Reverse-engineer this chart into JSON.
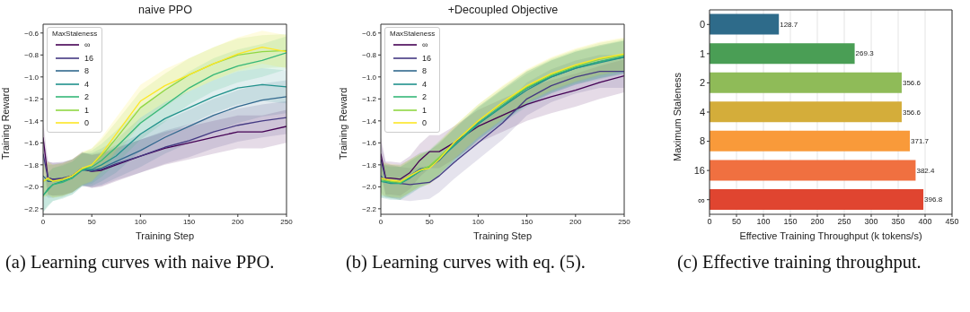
{
  "chart_data": [
    {
      "type": "line",
      "title": "naive PPO",
      "xlabel": "Training Step",
      "ylabel": "Training Reward",
      "legend_title": "MaxStaleness",
      "legend": "top left",
      "grid": false,
      "marker": "none",
      "line_style": "solid",
      "xlim": [
        0,
        250
      ],
      "xticks": [
        0,
        50,
        100,
        150,
        200,
        250
      ],
      "ylim": [
        -2.25,
        -0.52
      ],
      "yticks": [
        {
          "value": -2.2,
          "label": "−2.2"
        },
        {
          "value": -2.0,
          "label": "−2.0"
        },
        {
          "value": -1.8,
          "label": "−1.8"
        },
        {
          "value": -1.6,
          "label": "−1.6"
        },
        {
          "value": -1.4,
          "label": "−1.4"
        },
        {
          "value": -1.2,
          "label": "−1.2"
        },
        {
          "value": -1.0,
          "label": "−1.0"
        },
        {
          "value": -0.8,
          "label": "−0.8"
        },
        {
          "value": -0.6,
          "label": "−0.6"
        }
      ],
      "x": [
        0,
        5,
        10,
        20,
        30,
        40,
        50,
        60,
        75,
        100,
        125,
        150,
        175,
        200,
        225,
        250
      ],
      "series": [
        {
          "name": "∞",
          "color": "#440154",
          "values": [
            -1.55,
            -1.92,
            -1.93,
            -1.93,
            -1.9,
            -1.84,
            -1.86,
            -1.85,
            -1.8,
            -1.72,
            -1.65,
            -1.6,
            -1.55,
            -1.5,
            -1.5,
            -1.45
          ],
          "lower": [
            -1.7,
            -2.07,
            -2.08,
            -2.08,
            -2.05,
            -1.99,
            -2.01,
            -2.0,
            -1.95,
            -1.87,
            -1.8,
            -1.75,
            -1.7,
            -1.65,
            -1.65,
            -1.6
          ],
          "upper": [
            -1.4,
            -1.77,
            -1.78,
            -1.78,
            -1.75,
            -1.69,
            -1.71,
            -1.7,
            -1.65,
            -1.57,
            -1.5,
            -1.45,
            -1.4,
            -1.35,
            -1.35,
            -1.3
          ]
        },
        {
          "name": "16",
          "color": "#443983",
          "values": [
            -1.7,
            -1.92,
            -1.93,
            -1.92,
            -1.9,
            -1.83,
            -1.86,
            -1.84,
            -1.79,
            -1.72,
            -1.64,
            -1.58,
            -1.5,
            -1.44,
            -1.4,
            -1.37
          ],
          "lower": [
            -1.85,
            -2.07,
            -2.08,
            -2.07,
            -2.05,
            -1.98,
            -2.01,
            -1.99,
            -1.94,
            -1.87,
            -1.79,
            -1.73,
            -1.65,
            -1.59,
            -1.55,
            -1.52
          ],
          "upper": [
            -1.55,
            -1.77,
            -1.78,
            -1.77,
            -1.75,
            -1.68,
            -1.71,
            -1.69,
            -1.64,
            -1.57,
            -1.49,
            -1.43,
            -1.35,
            -1.29,
            -1.25,
            -1.22
          ]
        },
        {
          "name": "8",
          "color": "#31688e",
          "values": [
            -1.9,
            -1.95,
            -1.95,
            -1.93,
            -1.9,
            -1.84,
            -1.85,
            -1.83,
            -1.77,
            -1.67,
            -1.55,
            -1.45,
            -1.35,
            -1.27,
            -1.21,
            -1.18
          ],
          "lower": [
            -2.05,
            -2.1,
            -2.1,
            -2.08,
            -2.05,
            -1.99,
            -2.0,
            -1.98,
            -1.92,
            -1.82,
            -1.7,
            -1.6,
            -1.5,
            -1.42,
            -1.36,
            -1.33
          ],
          "upper": [
            -1.75,
            -1.8,
            -1.8,
            -1.78,
            -1.75,
            -1.69,
            -1.7,
            -1.68,
            -1.62,
            -1.52,
            -1.4,
            -1.3,
            -1.2,
            -1.12,
            -1.06,
            -1.03
          ]
        },
        {
          "name": "4",
          "color": "#21918c",
          "values": [
            -2.08,
            -2.02,
            -1.98,
            -1.95,
            -1.92,
            -1.85,
            -1.84,
            -1.8,
            -1.72,
            -1.52,
            -1.38,
            -1.28,
            -1.18,
            -1.1,
            -1.07,
            -1.09
          ],
          "lower": [
            -2.23,
            -2.17,
            -2.13,
            -2.1,
            -2.07,
            -2.0,
            -1.99,
            -1.95,
            -1.87,
            -1.67,
            -1.53,
            -1.43,
            -1.33,
            -1.25,
            -1.22,
            -1.24
          ],
          "upper": [
            -1.93,
            -1.87,
            -1.83,
            -1.8,
            -1.77,
            -1.7,
            -1.69,
            -1.65,
            -1.57,
            -1.37,
            -1.23,
            -1.13,
            -1.03,
            -0.95,
            -0.92,
            -0.94
          ]
        },
        {
          "name": "2",
          "color": "#35b779",
          "values": [
            -2.08,
            -2.03,
            -1.98,
            -1.96,
            -1.92,
            -1.84,
            -1.82,
            -1.76,
            -1.64,
            -1.42,
            -1.26,
            -1.1,
            -0.98,
            -0.9,
            -0.85,
            -0.78
          ],
          "lower": [
            -2.23,
            -2.18,
            -2.13,
            -2.11,
            -2.07,
            -1.99,
            -1.97,
            -1.91,
            -1.79,
            -1.57,
            -1.41,
            -1.25,
            -1.13,
            -1.05,
            -1.0,
            -0.93
          ],
          "upper": [
            -1.93,
            -1.88,
            -1.83,
            -1.81,
            -1.77,
            -1.69,
            -1.67,
            -1.61,
            -1.49,
            -1.27,
            -1.11,
            -0.95,
            -0.83,
            -0.75,
            -0.7,
            -0.63
          ]
        },
        {
          "name": "1",
          "color": "#90d743",
          "values": [
            -1.95,
            -1.93,
            -1.95,
            -1.94,
            -1.9,
            -1.84,
            -1.8,
            -1.72,
            -1.56,
            -1.28,
            -1.12,
            -0.98,
            -0.88,
            -0.8,
            -0.77,
            -0.76
          ],
          "lower": [
            -2.1,
            -2.08,
            -2.1,
            -2.09,
            -2.05,
            -1.99,
            -1.95,
            -1.87,
            -1.71,
            -1.43,
            -1.27,
            -1.13,
            -1.03,
            -0.95,
            -0.92,
            -0.91
          ],
          "upper": [
            -1.8,
            -1.78,
            -1.8,
            -1.79,
            -1.75,
            -1.69,
            -1.65,
            -1.57,
            -1.41,
            -1.13,
            -0.97,
            -0.83,
            -0.73,
            -0.65,
            -0.62,
            -0.61
          ]
        },
        {
          "name": "0",
          "color": "#fde725",
          "values": [
            -1.95,
            -1.92,
            -1.95,
            -1.93,
            -1.9,
            -1.83,
            -1.8,
            -1.7,
            -1.52,
            -1.22,
            -1.08,
            -0.98,
            -0.88,
            -0.79,
            -0.73,
            -0.77
          ],
          "lower": [
            -2.1,
            -2.07,
            -2.1,
            -2.08,
            -2.05,
            -1.98,
            -1.95,
            -1.85,
            -1.67,
            -1.37,
            -1.23,
            -1.13,
            -1.03,
            -0.94,
            -0.88,
            -0.92
          ],
          "upper": [
            -1.8,
            -1.77,
            -1.8,
            -1.78,
            -1.75,
            -1.68,
            -1.65,
            -1.55,
            -1.37,
            -1.07,
            -0.93,
            -0.83,
            -0.73,
            -0.64,
            -0.58,
            -0.62
          ]
        }
      ],
      "annotations": [
        "(a) Learning curves with naive PPO."
      ]
    },
    {
      "type": "line",
      "title": "+Decoupled Objective",
      "xlabel": "Training Step",
      "ylabel": "Training Reward",
      "legend_title": "MaxStaleness",
      "legend": "top left",
      "grid": false,
      "marker": "none",
      "line_style": "solid",
      "xlim": [
        0,
        250
      ],
      "xticks": [
        0,
        50,
        100,
        150,
        200,
        250
      ],
      "ylim": [
        -2.25,
        -0.52
      ],
      "yticks": [
        {
          "value": -2.2,
          "label": "−2.2"
        },
        {
          "value": -2.0,
          "label": "−2.0"
        },
        {
          "value": -1.8,
          "label": "−1.8"
        },
        {
          "value": -1.6,
          "label": "−1.6"
        },
        {
          "value": -1.4,
          "label": "−1.4"
        },
        {
          "value": -1.2,
          "label": "−1.2"
        },
        {
          "value": -1.0,
          "label": "−1.0"
        },
        {
          "value": -0.8,
          "label": "−0.8"
        },
        {
          "value": -0.6,
          "label": "−0.6"
        }
      ],
      "x": [
        0,
        5,
        10,
        20,
        30,
        40,
        50,
        60,
        75,
        100,
        125,
        150,
        175,
        200,
        225,
        250
      ],
      "series": [
        {
          "name": "∞",
          "color": "#440154",
          "values": [
            -1.7,
            -1.92,
            -1.92,
            -1.93,
            -1.87,
            -1.76,
            -1.68,
            -1.68,
            -1.6,
            -1.45,
            -1.35,
            -1.25,
            -1.18,
            -1.12,
            -1.05,
            -0.99
          ],
          "lower": [
            -1.85,
            -2.07,
            -2.07,
            -2.08,
            -2.02,
            -1.91,
            -1.83,
            -1.83,
            -1.75,
            -1.6,
            -1.5,
            -1.4,
            -1.33,
            -1.27,
            -1.2,
            -1.14
          ],
          "upper": [
            -1.55,
            -1.77,
            -1.77,
            -1.78,
            -1.72,
            -1.61,
            -1.53,
            -1.53,
            -1.45,
            -1.3,
            -1.2,
            -1.1,
            -1.03,
            -0.97,
            -0.9,
            -0.84
          ]
        },
        {
          "name": "16",
          "color": "#443983",
          "values": [
            -1.75,
            -1.93,
            -1.95,
            -1.97,
            -1.98,
            -1.97,
            -1.96,
            -1.9,
            -1.78,
            -1.6,
            -1.42,
            -1.2,
            -1.08,
            -1.0,
            -0.95,
            -0.95
          ],
          "lower": [
            -1.9,
            -2.08,
            -2.1,
            -2.12,
            -2.13,
            -2.12,
            -2.11,
            -2.05,
            -1.93,
            -1.75,
            -1.57,
            -1.35,
            -1.23,
            -1.15,
            -1.1,
            -1.1
          ],
          "upper": [
            -1.6,
            -1.78,
            -1.8,
            -1.82,
            -1.83,
            -1.82,
            -1.81,
            -1.75,
            -1.63,
            -1.45,
            -1.27,
            -1.05,
            -0.93,
            -0.85,
            -0.8,
            -0.8
          ]
        },
        {
          "name": "8",
          "color": "#31688e",
          "values": [
            -1.9,
            -1.95,
            -1.95,
            -1.95,
            -1.9,
            -1.84,
            -1.82,
            -1.76,
            -1.62,
            -1.42,
            -1.26,
            -1.1,
            -1.0,
            -0.92,
            -0.86,
            -0.82
          ],
          "lower": [
            -2.05,
            -2.1,
            -2.1,
            -2.1,
            -2.05,
            -1.99,
            -1.97,
            -1.91,
            -1.77,
            -1.57,
            -1.41,
            -1.25,
            -1.15,
            -1.07,
            -1.01,
            -0.97
          ],
          "upper": [
            -1.75,
            -1.8,
            -1.8,
            -1.8,
            -1.75,
            -1.69,
            -1.67,
            -1.61,
            -1.47,
            -1.27,
            -1.11,
            -0.95,
            -0.85,
            -0.77,
            -0.71,
            -0.67
          ]
        },
        {
          "name": "4",
          "color": "#21918c",
          "values": [
            -1.95,
            -1.96,
            -1.97,
            -1.97,
            -1.92,
            -1.86,
            -1.82,
            -1.75,
            -1.63,
            -1.43,
            -1.27,
            -1.12,
            -1.0,
            -0.92,
            -0.87,
            -0.82
          ],
          "lower": [
            -2.1,
            -2.11,
            -2.12,
            -2.12,
            -2.07,
            -2.01,
            -1.97,
            -1.9,
            -1.78,
            -1.58,
            -1.42,
            -1.27,
            -1.15,
            -1.07,
            -1.02,
            -0.97
          ],
          "upper": [
            -1.8,
            -1.81,
            -1.82,
            -1.82,
            -1.77,
            -1.71,
            -1.67,
            -1.6,
            -1.48,
            -1.28,
            -1.12,
            -0.97,
            -0.85,
            -0.77,
            -0.72,
            -0.67
          ]
        },
        {
          "name": "2",
          "color": "#35b779",
          "values": [
            -1.95,
            -1.95,
            -1.96,
            -1.97,
            -1.91,
            -1.86,
            -1.82,
            -1.74,
            -1.62,
            -1.42,
            -1.26,
            -1.1,
            -0.99,
            -0.91,
            -0.86,
            -0.81
          ],
          "lower": [
            -2.1,
            -2.1,
            -2.11,
            -2.12,
            -2.06,
            -2.01,
            -1.97,
            -1.89,
            -1.77,
            -1.57,
            -1.41,
            -1.25,
            -1.14,
            -1.06,
            -1.01,
            -0.96
          ],
          "upper": [
            -1.8,
            -1.8,
            -1.81,
            -1.82,
            -1.76,
            -1.71,
            -1.67,
            -1.59,
            -1.47,
            -1.27,
            -1.11,
            -0.95,
            -0.84,
            -0.76,
            -0.71,
            -0.66
          ]
        },
        {
          "name": "1",
          "color": "#90d743",
          "values": [
            -1.93,
            -1.94,
            -1.95,
            -1.96,
            -1.9,
            -1.85,
            -1.81,
            -1.73,
            -1.6,
            -1.4,
            -1.24,
            -1.09,
            -0.98,
            -0.9,
            -0.84,
            -0.8
          ],
          "lower": [
            -2.08,
            -2.09,
            -2.1,
            -2.11,
            -2.05,
            -2.0,
            -1.96,
            -1.88,
            -1.75,
            -1.55,
            -1.39,
            -1.24,
            -1.13,
            -1.05,
            -0.99,
            -0.95
          ],
          "upper": [
            -1.78,
            -1.79,
            -1.8,
            -1.81,
            -1.75,
            -1.7,
            -1.66,
            -1.58,
            -1.45,
            -1.25,
            -1.09,
            -0.94,
            -0.83,
            -0.75,
            -0.69,
            -0.65
          ]
        },
        {
          "name": "0",
          "color": "#fde725",
          "values": [
            -1.92,
            -1.93,
            -1.94,
            -1.95,
            -1.9,
            -1.85,
            -1.83,
            -1.75,
            -1.6,
            -1.4,
            -1.23,
            -1.08,
            -0.97,
            -0.89,
            -0.83,
            -0.79
          ],
          "lower": [
            -2.07,
            -2.08,
            -2.09,
            -2.1,
            -2.05,
            -2.0,
            -1.98,
            -1.9,
            -1.75,
            -1.55,
            -1.38,
            -1.23,
            -1.12,
            -1.04,
            -0.98,
            -0.94
          ],
          "upper": [
            -1.77,
            -1.78,
            -1.79,
            -1.8,
            -1.75,
            -1.7,
            -1.68,
            -1.6,
            -1.45,
            -1.25,
            -1.08,
            -0.93,
            -0.82,
            -0.74,
            -0.68,
            -0.64
          ]
        }
      ],
      "annotations": [
        "(b) Learning curves with eq. (5)."
      ]
    },
    {
      "type": "bar",
      "orientation": "horizontal",
      "xlabel": "Effective Training Throughput (k tokens/s)",
      "ylabel": "Maximum Staleness",
      "categories": [
        "0",
        "1",
        "2",
        "4",
        "8",
        "16",
        "∞"
      ],
      "values": [
        128.7,
        269.3,
        356.6,
        356.6,
        371.7,
        382.4,
        396.8
      ],
      "colors": [
        "#2e6b8a",
        "#4a9e55",
        "#8fbb58",
        "#d4ad3a",
        "#f99a3a",
        "#f07040",
        "#e04530"
      ],
      "xlim": [
        0,
        450
      ],
      "xticks": [
        0,
        50,
        100,
        150,
        200,
        250,
        300,
        350,
        400,
        450
      ],
      "grid": "x",
      "data_labels": true,
      "annotations": [
        "(c) Effective training throughput."
      ]
    }
  ]
}
